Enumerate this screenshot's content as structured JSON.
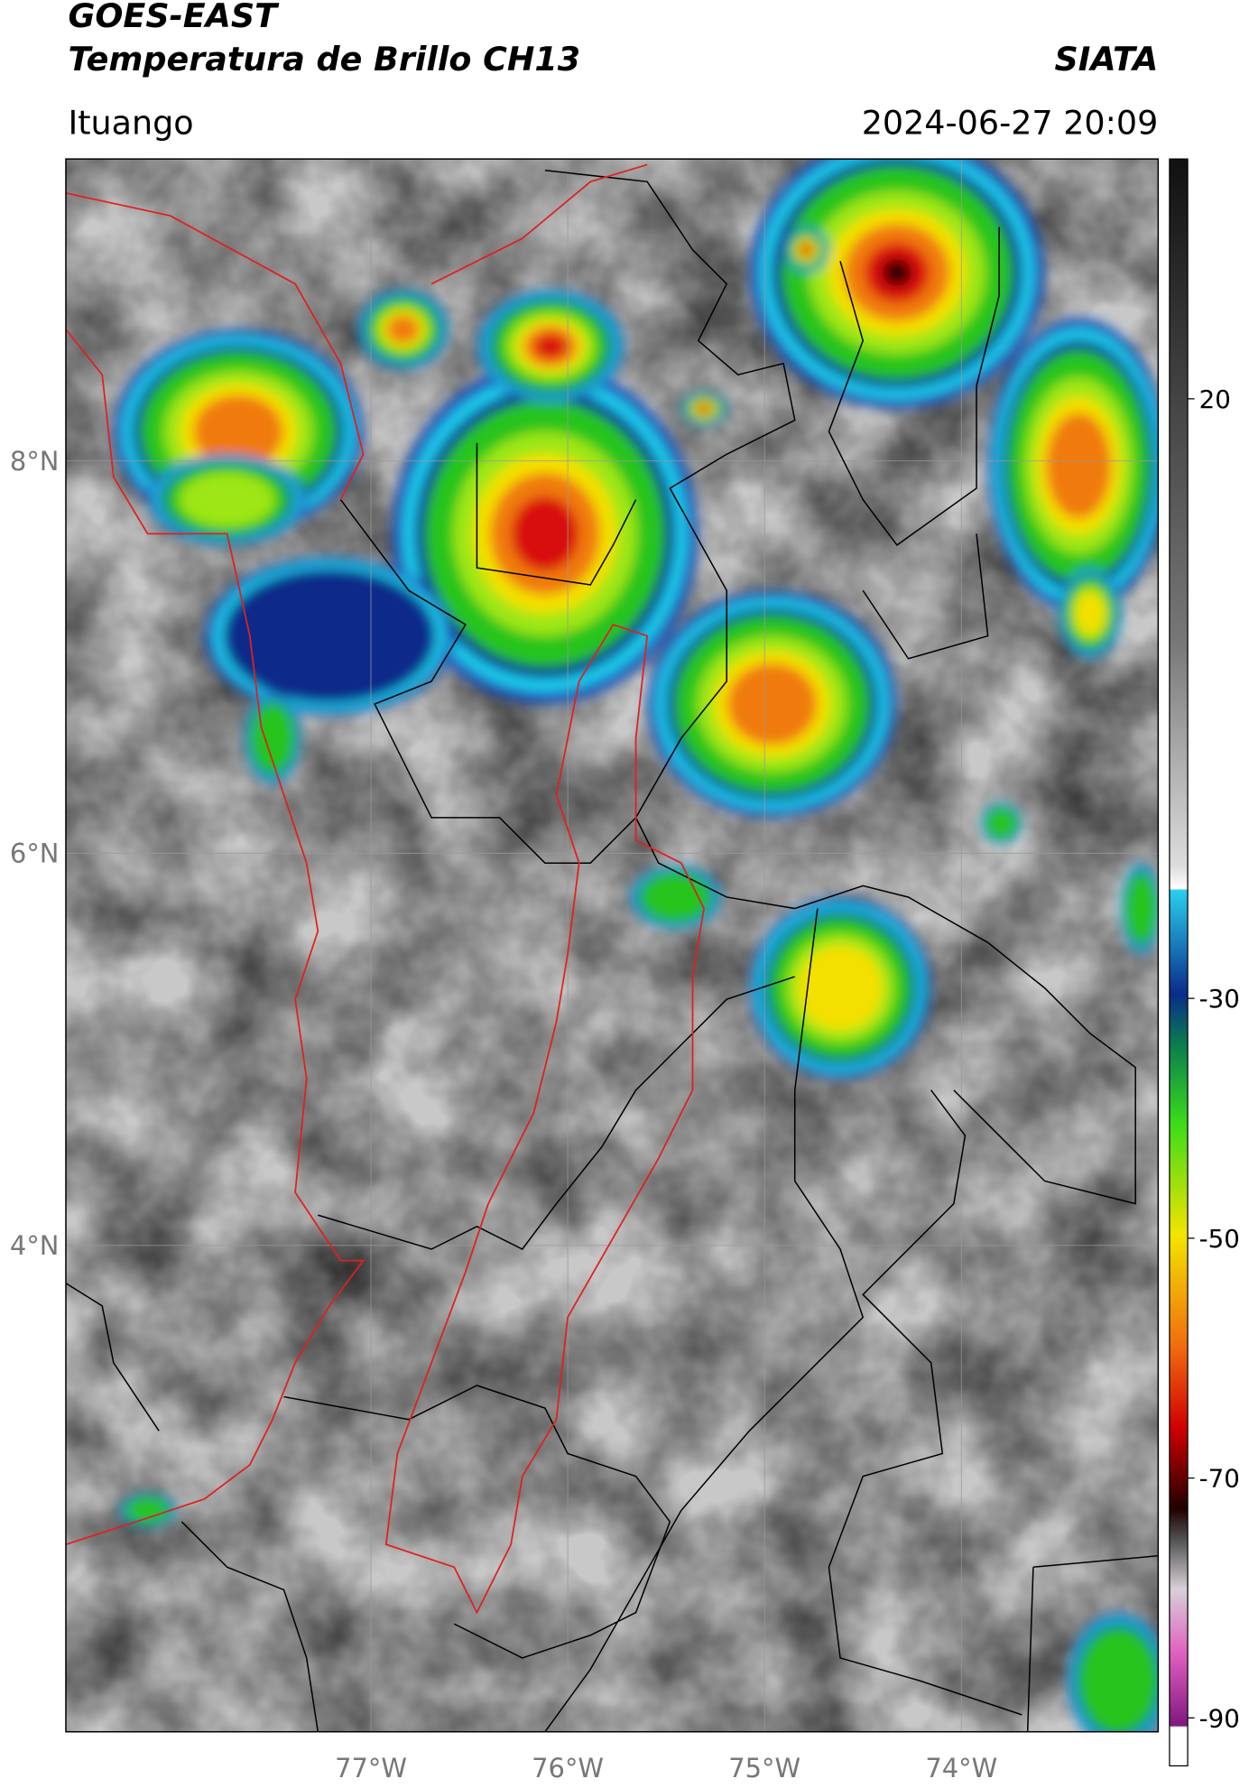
{
  "header": {
    "title": "GOES-EAST",
    "subtitle": "Temperatura de Brillo CH13",
    "brand": "SIATA",
    "location": "Ituango",
    "datetime": "2024-06-27 20:09"
  },
  "map": {
    "xlim": [
      -78.55,
      -73.0
    ],
    "ylim": [
      1.52,
      9.54
    ],
    "xticks": [
      {
        "value": -77,
        "label": "77°W"
      },
      {
        "value": -76,
        "label": "76°W"
      },
      {
        "value": -75,
        "label": "75°W"
      },
      {
        "value": -74,
        "label": "74°W"
      }
    ],
    "yticks": [
      {
        "value": 8,
        "label": "8°N"
      },
      {
        "value": 6,
        "label": "6°N"
      },
      {
        "value": 4,
        "label": "4°N"
      }
    ]
  },
  "colorbar": {
    "lim": [
      -94,
      40
    ],
    "ticks": [
      20,
      -30,
      -50,
      -70,
      -90
    ]
  }
}
